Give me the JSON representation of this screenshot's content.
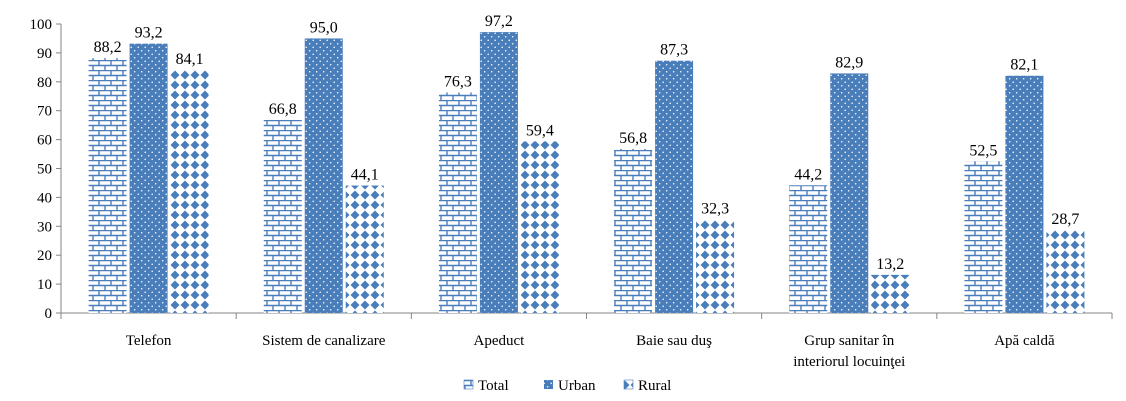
{
  "chart_data": {
    "type": "bar",
    "categories": [
      [
        "Telefon"
      ],
      [
        "Sistem de canalizare"
      ],
      [
        "Apeduct"
      ],
      [
        "Baie sau duş"
      ],
      [
        "Grup sanitar în",
        "interiorul locuinţei"
      ],
      [
        "Apă caldă"
      ]
    ],
    "series": [
      {
        "name": "Total",
        "values": [
          88.2,
          66.8,
          76.3,
          56.8,
          44.2,
          52.5
        ],
        "labels": [
          "88,2",
          "66,8",
          "76,3",
          "56,8",
          "44,2",
          "52,5"
        ],
        "pattern": "brick"
      },
      {
        "name": "Urban",
        "values": [
          93.2,
          95.0,
          97.2,
          87.3,
          82.9,
          82.1
        ],
        "labels": [
          "93,2",
          "95,0",
          "97,2",
          "87,3",
          "82,9",
          "82,1"
        ],
        "pattern": "dots"
      },
      {
        "name": "Rural",
        "values": [
          84.1,
          44.1,
          59.4,
          32.3,
          13.2,
          28.7
        ],
        "labels": [
          "84,1",
          "44,1",
          "59,4",
          "32,3",
          "13,2",
          "28,7"
        ],
        "pattern": "diamonds"
      }
    ],
    "ylim": [
      0,
      100
    ],
    "yticks": [
      "0",
      "10",
      "20",
      "30",
      "40",
      "50",
      "60",
      "70",
      "80",
      "90",
      "100"
    ],
    "grid": false,
    "legend_position": "bottom",
    "colors": {
      "bar": "#4a7ebb",
      "bar_light": "#ffffff",
      "axis": "#868686"
    }
  }
}
